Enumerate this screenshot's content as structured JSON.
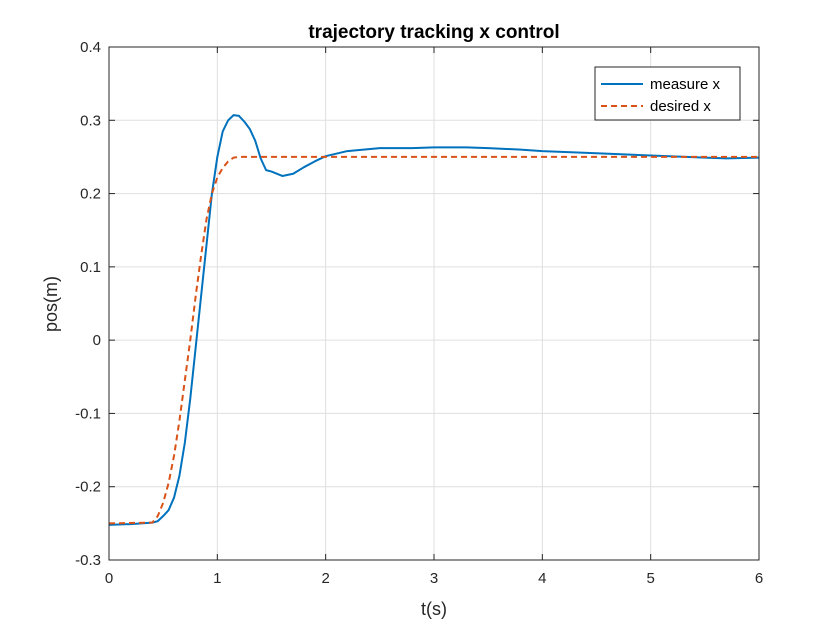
{
  "chart_data": {
    "type": "line",
    "title": "trajectory tracking x control",
    "xlabel": "t(s)",
    "ylabel": "pos(m)",
    "xlim": [
      0,
      6
    ],
    "ylim": [
      -0.3,
      0.4
    ],
    "xticks": [
      "0",
      "1",
      "2",
      "3",
      "4",
      "5",
      "6"
    ],
    "yticks": [
      "0.4",
      "0.3",
      "0.2",
      "0.1",
      "0",
      "-0.1",
      "-0.2",
      "-0.3"
    ],
    "xtick_values": [
      0,
      1,
      2,
      3,
      4,
      5,
      6
    ],
    "ytick_values": [
      0.4,
      0.3,
      0.2,
      0.1,
      0,
      -0.1,
      -0.2,
      -0.3
    ],
    "grid": true,
    "legend_position": "top-right",
    "series": [
      {
        "name": "measure x",
        "color": "#0072BD",
        "style": "solid",
        "x": [
          0,
          0.2,
          0.4,
          0.45,
          0.5,
          0.55,
          0.6,
          0.65,
          0.7,
          0.75,
          0.8,
          0.85,
          0.9,
          0.95,
          1.0,
          1.05,
          1.1,
          1.15,
          1.2,
          1.25,
          1.3,
          1.35,
          1.4,
          1.45,
          1.5,
          1.6,
          1.7,
          1.8,
          1.9,
          2.0,
          2.2,
          2.5,
          2.8,
          3.0,
          3.3,
          3.5,
          3.8,
          4.0,
          4.5,
          5.0,
          5.5,
          5.7,
          6.0
        ],
        "y": [
          -0.252,
          -0.251,
          -0.249,
          -0.247,
          -0.24,
          -0.232,
          -0.215,
          -0.185,
          -0.14,
          -0.08,
          -0.01,
          0.06,
          0.13,
          0.2,
          0.25,
          0.285,
          0.3,
          0.307,
          0.306,
          0.298,
          0.288,
          0.272,
          0.248,
          0.232,
          0.23,
          0.224,
          0.227,
          0.236,
          0.244,
          0.251,
          0.258,
          0.262,
          0.262,
          0.263,
          0.263,
          0.262,
          0.26,
          0.258,
          0.255,
          0.252,
          0.249,
          0.248,
          0.249
        ]
      },
      {
        "name": "desired x",
        "color": "#D95319",
        "style": "dashed",
        "x": [
          0,
          0.4,
          0.45,
          0.5,
          0.55,
          0.6,
          0.65,
          0.7,
          0.75,
          0.8,
          0.85,
          0.9,
          0.95,
          1.0,
          1.05,
          1.1,
          1.15,
          1.2,
          1.3,
          2.0,
          3.0,
          4.0,
          5.0,
          6.0
        ],
        "y": [
          -0.25,
          -0.249,
          -0.24,
          -0.222,
          -0.195,
          -0.158,
          -0.11,
          -0.055,
          0.0,
          0.06,
          0.115,
          0.165,
          0.2,
          0.222,
          0.235,
          0.244,
          0.249,
          0.25,
          0.25,
          0.25,
          0.25,
          0.25,
          0.25,
          0.25
        ]
      }
    ]
  }
}
